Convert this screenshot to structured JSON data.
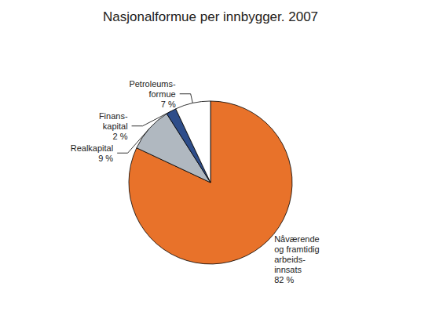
{
  "chart_data": {
    "type": "pie",
    "title": "Nasjonalformue per innbygger. 2007",
    "categories": [
      "Nåværende\nog framtidig\narbeids-\ninnsats\n82 %",
      "Realkapital\n9 %",
      "Finans-\nkapital\n2 %",
      "Petroleums-\nformue\n7 %"
    ],
    "values": [
      82,
      9,
      2,
      7
    ],
    "colors": [
      "#E8722A",
      "#B0B8C0",
      "#2E4D8A",
      "#FFFFFF"
    ]
  }
}
